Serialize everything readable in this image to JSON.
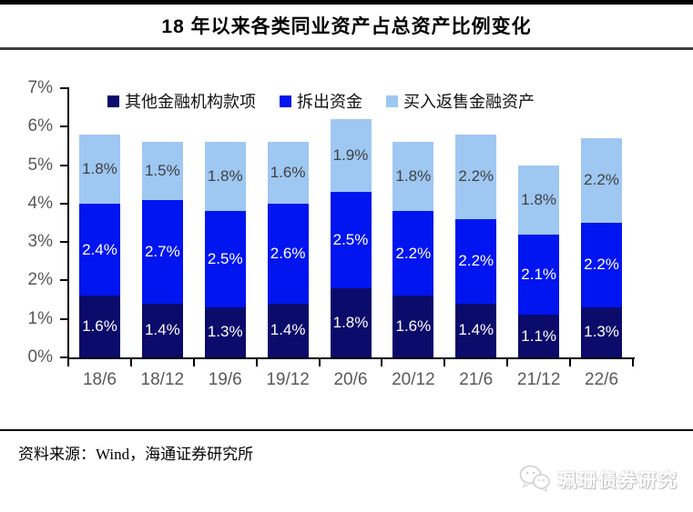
{
  "title": "18 年以来各类同业资产占总资产比例变化",
  "source": {
    "text": "资料来源：Wind，海通证券研究所"
  },
  "watermark": {
    "text": "珮珊债券研究"
  },
  "colors": {
    "axis": "#000000",
    "tick_label": "#595959",
    "divider": "#3d3d3d"
  },
  "chart_data": {
    "type": "bar",
    "stacked": true,
    "title": "18 年以来各类同业资产占总资产比例变化",
    "categories": [
      "18/6",
      "18/12",
      "19/6",
      "19/12",
      "20/6",
      "20/12",
      "21/6",
      "21/12",
      "22/6"
    ],
    "series": [
      {
        "name": "其他金融机构款项",
        "color": "#0B0B6B",
        "label_color": "#FFFFFF",
        "values": [
          1.6,
          1.4,
          1.3,
          1.4,
          1.8,
          1.6,
          1.4,
          1.1,
          1.3
        ],
        "labels": [
          "1.6%",
          "1.4%",
          "1.3%",
          "1.4%",
          "1.8%",
          "1.6%",
          "1.4%",
          "1.1%",
          "1.3%"
        ]
      },
      {
        "name": "拆出资金",
        "color": "#0015EF",
        "label_color": "#FFFFFF",
        "values": [
          2.4,
          2.7,
          2.5,
          2.6,
          2.5,
          2.2,
          2.2,
          2.1,
          2.2
        ],
        "labels": [
          "2.4%",
          "2.7%",
          "2.5%",
          "2.6%",
          "2.5%",
          "2.2%",
          "2.2%",
          "2.1%",
          "2.2%"
        ]
      },
      {
        "name": "买入返售金融资产",
        "color": "#9EC7F2",
        "label_color": "#404040",
        "values": [
          1.8,
          1.5,
          1.8,
          1.6,
          1.9,
          1.8,
          2.2,
          1.8,
          2.2
        ],
        "labels": [
          "1.8%",
          "1.5%",
          "1.8%",
          "1.6%",
          "1.9%",
          "1.8%",
          "2.2%",
          "1.8%",
          "2.2%"
        ]
      }
    ],
    "y_ticks": [
      "0%",
      "1%",
      "2%",
      "3%",
      "4%",
      "5%",
      "6%",
      "7%"
    ],
    "ylim": [
      0,
      7
    ],
    "xlabel": "",
    "ylabel": "",
    "grid": false,
    "legend_position": "top-inside"
  }
}
